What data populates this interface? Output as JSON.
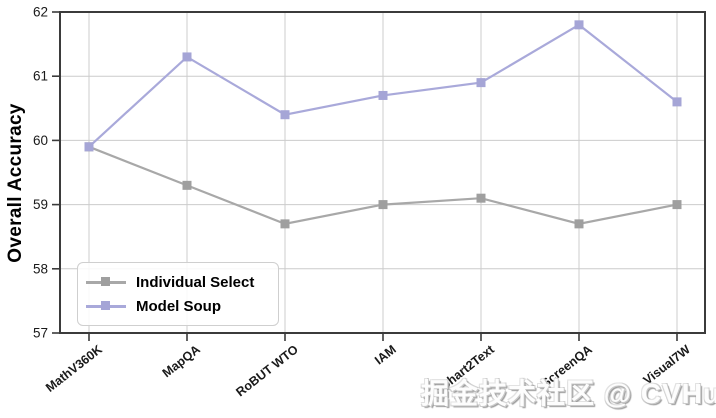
{
  "watermark_text": "掘金技术社区 @ CVHub",
  "colors": {
    "background": "#ffffff",
    "spine": "#3b3b3b",
    "grid": "#cccccc",
    "tick_label": "#1a1a1a",
    "individual_select_line": "#a8a8a8",
    "individual_select_marker": "#9f9f9f",
    "model_soup_line": "#a9a9da",
    "model_soup_marker": "#a5a5d6"
  },
  "chart_data": {
    "type": "line",
    "title": "",
    "xlabel": "",
    "ylabel": "Overall Accuracy",
    "categories": [
      "MathV360K",
      "MapQA",
      "RoBUT WTO",
      "IAM",
      "Chart2Text",
      "ScreenQA",
      "Visual7W"
    ],
    "series": [
      {
        "name": "Individual Select",
        "values": [
          59.9,
          59.3,
          58.7,
          59.0,
          59.1,
          58.7,
          59.0
        ],
        "line_color": "#a8a8a8",
        "marker_color": "#9f9f9f",
        "marker": "square"
      },
      {
        "name": "Model Soup",
        "values": [
          59.9,
          61.3,
          60.4,
          60.7,
          60.9,
          61.8,
          60.6
        ],
        "line_color": "#a9a9da",
        "marker_color": "#a5a5d6",
        "marker": "square"
      }
    ],
    "ylim": [
      57,
      62
    ],
    "yticks": [
      57,
      58,
      59,
      60,
      61,
      62
    ],
    "grid": true,
    "legend_position": "lower left",
    "x_tick_rotation_deg": 38
  }
}
